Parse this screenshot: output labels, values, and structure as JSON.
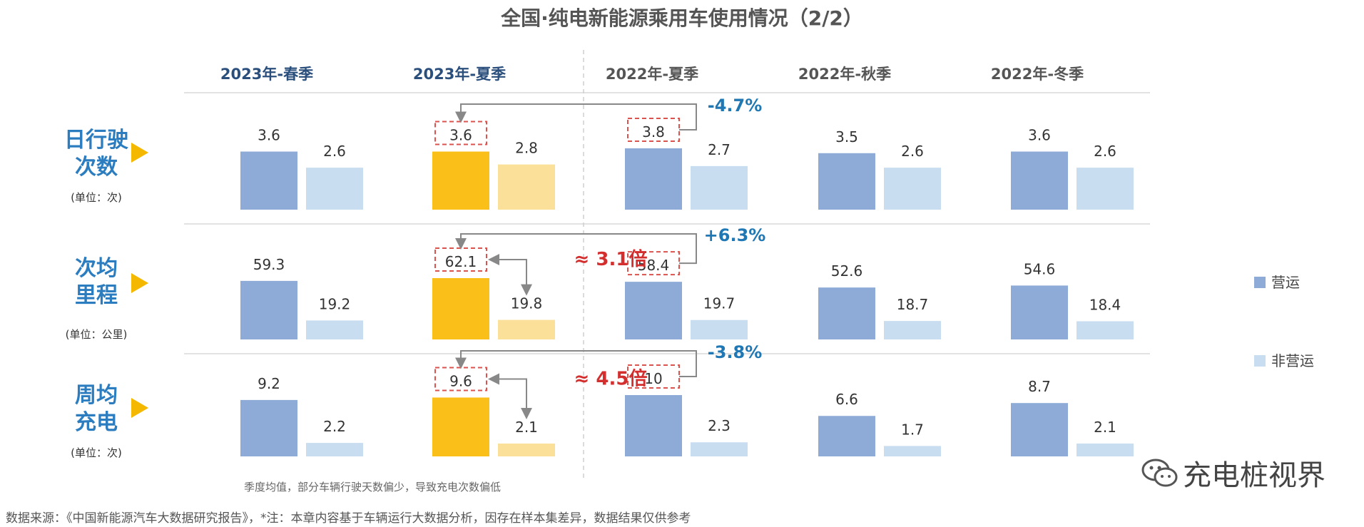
{
  "title": "全国·纯电新能源乘用车使用情况（2/2）",
  "colors": {
    "operating": "#8eabd7",
    "non_operating": "#c8ddf0",
    "highlight_operating": "#fbbf1a",
    "highlight_non_operating": "#fbe09a",
    "metric_label": "#2c7dbf",
    "change_label": "#1f78b4",
    "ratio_label": "#d32f2f",
    "arrow": "#f5b800"
  },
  "metrics": [
    {
      "name_lines": [
        "日行驶",
        "次数"
      ],
      "unit": "(单位：次)"
    },
    {
      "name_lines": [
        "次均",
        "里程"
      ],
      "unit": "(单位：公里)"
    },
    {
      "name_lines": [
        "周均",
        "充电"
      ],
      "unit": "(单位：次)"
    }
  ],
  "legend": [
    {
      "label": "营运",
      "color": "#8eabd7"
    },
    {
      "label": "非营运",
      "color": "#c8ddf0"
    }
  ],
  "notes": {
    "season_note": "季度均值，部分车辆行驶天数偏少，导致充电次数偏低",
    "source": "数据来源：《中国新能源汽车大数据研究报告》，*注：本章内容基于车辆运行大数据分析，因存在样本集差异，数据结果仅供参考"
  },
  "brand": {
    "text": "充电桩视界",
    "icon": "wechat-icon"
  },
  "chart_data": {
    "type": "bar",
    "categories": [
      "2023年-春季",
      "2023年-夏季",
      "2022年-夏季",
      "2022年-秋季",
      "2022年-冬季"
    ],
    "highlight_category": "2023年-夏季",
    "panels": [
      {
        "metric": "日行驶次数",
        "unit": "次",
        "series": [
          {
            "name": "营运",
            "values": [
              3.6,
              3.6,
              3.8,
              3.5,
              3.6
            ]
          },
          {
            "name": "非营运",
            "values": [
              2.6,
              2.8,
              2.7,
              2.6,
              2.6
            ]
          }
        ],
        "yoy_change": "-4.7%",
        "ratio": ""
      },
      {
        "metric": "次均里程",
        "unit": "公里",
        "series": [
          {
            "name": "营运",
            "values": [
              59.3,
              62.1,
              58.4,
              52.6,
              54.6
            ]
          },
          {
            "name": "非营运",
            "values": [
              19.2,
              19.8,
              19.7,
              18.7,
              18.4
            ]
          }
        ],
        "yoy_change": "+6.3%",
        "ratio": "≈ 3.1倍"
      },
      {
        "metric": "周均充电",
        "unit": "次",
        "series": [
          {
            "name": "营运",
            "values": [
              9.2,
              9.6,
              10.0,
              6.6,
              8.7
            ]
          },
          {
            "name": "非营运",
            "values": [
              2.2,
              2.1,
              2.3,
              1.7,
              2.1
            ]
          }
        ],
        "yoy_change": "-3.8%",
        "ratio": "≈ 4.5倍"
      }
    ]
  }
}
